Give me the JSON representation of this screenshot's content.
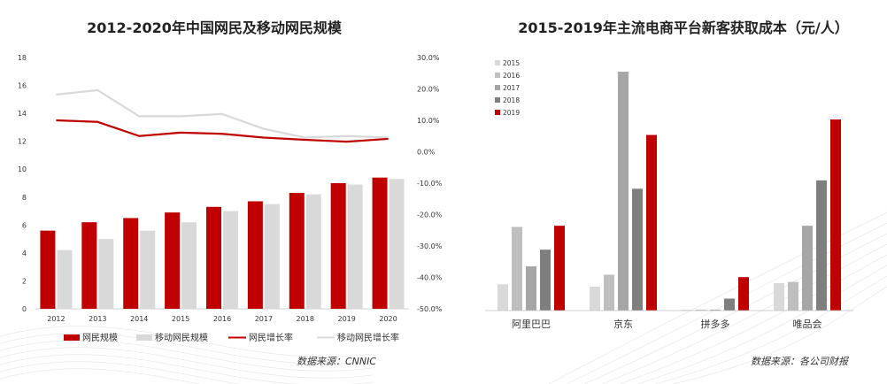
{
  "colors": {
    "netizen_bar": "#c00000",
    "mobile_bar": "#d9d9d9",
    "netizen_line": "#c00000",
    "mobile_line": "#d9d9d9",
    "y2015": "#d9d9d9",
    "y2016": "#bfbfbf",
    "y2017": "#a6a6a6",
    "y2018": "#7f7f7f",
    "y2019": "#c00000",
    "text": "#222222",
    "axis_text": "#333333"
  },
  "chart_data": [
    {
      "type": "bar",
      "title": "2012-2020年中国网民及移动网民规模",
      "categories": [
        "2012",
        "2013",
        "2014",
        "2015",
        "2016",
        "2017",
        "2018",
        "2019",
        "2020"
      ],
      "ylim": [
        0,
        18
      ],
      "yticks": [
        "0",
        "2",
        "4",
        "6",
        "8",
        "10",
        "12",
        "14",
        "16",
        "18"
      ],
      "y2lim": [
        -0.5,
        0.3
      ],
      "y2ticks": [
        "-50.0%",
        "-40.0%",
        "-30.0%",
        "-20.0%",
        "-10.0%",
        "0.0%",
        "10.0%",
        "20.0%",
        "30.0%"
      ],
      "series": [
        {
          "name": "网民规模",
          "kind": "bar",
          "axis": "left",
          "values": [
            5.6,
            6.2,
            6.5,
            6.9,
            7.3,
            7.7,
            8.3,
            9.0,
            9.4
          ]
        },
        {
          "name": "移动网民规模",
          "kind": "bar",
          "axis": "left",
          "values": [
            4.2,
            5.0,
            5.6,
            6.2,
            7.0,
            7.5,
            8.2,
            8.9,
            9.3
          ]
        },
        {
          "name": "网民增长率",
          "kind": "line",
          "axis": "right",
          "values": [
            0.1,
            0.095,
            0.05,
            0.061,
            0.057,
            0.045,
            0.038,
            0.032,
            0.041
          ]
        },
        {
          "name": "移动网民增长率",
          "kind": "line",
          "axis": "right",
          "values": [
            0.182,
            0.196,
            0.113,
            0.113,
            0.12,
            0.073,
            0.045,
            0.05,
            0.045
          ]
        }
      ],
      "source": "数据来源：CNNIC"
    },
    {
      "type": "bar",
      "title": "2015-2019年主流电商平台新客获取成本（元/人）",
      "categories": [
        "阿里巴巴",
        "京东",
        "拼多多",
        "唯品会"
      ],
      "ylim": [
        0,
        1000
      ],
      "series": [
        {
          "name": "2015",
          "values": [
            110,
            100,
            3,
            115
          ]
        },
        {
          "name": "2016",
          "values": [
            350,
            150,
            4,
            120
          ]
        },
        {
          "name": "2017",
          "values": [
            185,
            1000,
            4,
            355
          ]
        },
        {
          "name": "2018",
          "values": [
            255,
            510,
            50,
            545
          ]
        },
        {
          "name": "2019",
          "values": [
            355,
            735,
            140,
            800
          ]
        }
      ],
      "source": "数据来源：各公司财报"
    }
  ]
}
